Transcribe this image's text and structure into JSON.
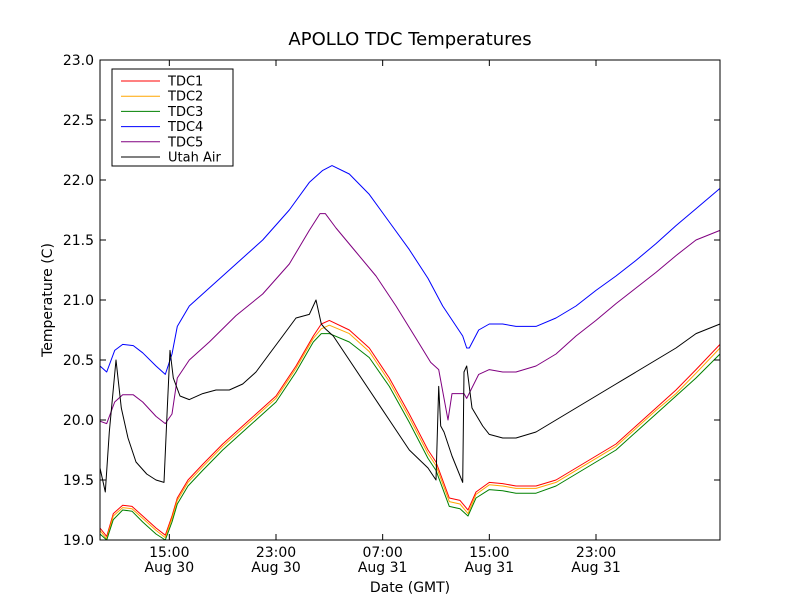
{
  "chart_data": {
    "type": "line",
    "title": "APOLLO TDC Temperatures",
    "xlabel": "Date (GMT)",
    "ylabel": "Temperature (C)",
    "ylim": [
      19.0,
      23.0
    ],
    "xlim_hours": [
      9.8,
      56.3
    ],
    "y_ticks": [
      {
        "value": 19.0,
        "label": "19.0"
      },
      {
        "value": 19.5,
        "label": "19.5"
      },
      {
        "value": 20.0,
        "label": "20.0"
      },
      {
        "value": 20.5,
        "label": "20.5"
      },
      {
        "value": 21.0,
        "label": "21.0"
      },
      {
        "value": 21.5,
        "label": "21.5"
      },
      {
        "value": 22.0,
        "label": "22.0"
      },
      {
        "value": 22.5,
        "label": "22.5"
      },
      {
        "value": 23.0,
        "label": "23.0"
      }
    ],
    "x_ticks": [
      {
        "hour": 15,
        "time": "15:00",
        "date": "Aug 30"
      },
      {
        "hour": 23,
        "time": "23:00",
        "date": "Aug 30"
      },
      {
        "hour": 31,
        "time": "07:00",
        "date": "Aug 31"
      },
      {
        "hour": 39,
        "time": "15:00",
        "date": "Aug 31"
      },
      {
        "hour": 47,
        "time": "23:00",
        "date": "Aug 31"
      }
    ],
    "legend": {
      "placement": "top-left"
    },
    "series": [
      {
        "name": "TDC1",
        "color": "#ff0000",
        "x": [
          9.8,
          10.3,
          10.8,
          11.5,
          12.2,
          13.0,
          14.0,
          14.7,
          15.2,
          15.6,
          16.4,
          17.5,
          19.0,
          21.0,
          23.0,
          24.5,
          25.8,
          26.4,
          27.0,
          28.5,
          30.0,
          31.5,
          33.0,
          34.4,
          35.0,
          36.0,
          36.8,
          37.4,
          38.0,
          39.0,
          40.0,
          41.0,
          42.5,
          44.0,
          45.5,
          47.0,
          48.5,
          50.0,
          51.5,
          53.0,
          54.5,
          56.3
        ],
        "values": [
          19.1,
          19.03,
          19.22,
          19.29,
          19.28,
          19.2,
          19.1,
          19.04,
          19.2,
          19.35,
          19.5,
          19.63,
          19.8,
          20.0,
          20.2,
          20.45,
          20.7,
          20.8,
          20.83,
          20.75,
          20.6,
          20.35,
          20.05,
          19.75,
          19.65,
          19.35,
          19.33,
          19.25,
          19.4,
          19.48,
          19.47,
          19.45,
          19.45,
          19.5,
          19.6,
          19.7,
          19.8,
          19.95,
          20.1,
          20.25,
          20.42,
          20.63
        ]
      },
      {
        "name": "TDC2",
        "color": "#ffa500",
        "x": [
          9.8,
          10.3,
          10.8,
          11.5,
          12.2,
          13.0,
          14.0,
          14.7,
          15.2,
          15.6,
          16.4,
          17.5,
          19.0,
          21.0,
          23.0,
          24.5,
          25.8,
          26.4,
          27.0,
          28.5,
          30.0,
          31.5,
          33.0,
          34.4,
          35.0,
          36.0,
          36.8,
          37.4,
          38.0,
          39.0,
          40.0,
          41.0,
          42.5,
          44.0,
          45.5,
          47.0,
          48.5,
          50.0,
          51.5,
          53.0,
          54.5,
          56.3
        ],
        "values": [
          19.08,
          19.01,
          19.2,
          19.27,
          19.26,
          19.18,
          19.08,
          19.02,
          19.18,
          19.33,
          19.48,
          19.61,
          19.78,
          19.98,
          20.18,
          20.43,
          20.68,
          20.76,
          20.79,
          20.72,
          20.57,
          20.32,
          20.02,
          19.72,
          19.62,
          19.32,
          19.3,
          19.22,
          19.38,
          19.46,
          19.45,
          19.43,
          19.43,
          19.48,
          19.58,
          19.68,
          19.78,
          19.93,
          20.08,
          20.22,
          20.39,
          20.6
        ]
      },
      {
        "name": "TDC3",
        "color": "#008000",
        "x": [
          9.8,
          10.3,
          10.8,
          11.5,
          12.2,
          13.0,
          14.0,
          14.7,
          15.2,
          15.6,
          16.4,
          17.5,
          19.0,
          21.0,
          23.0,
          24.5,
          25.8,
          26.4,
          27.0,
          28.5,
          30.0,
          31.5,
          33.0,
          34.4,
          35.0,
          36.0,
          36.8,
          37.4,
          38.0,
          39.0,
          40.0,
          41.0,
          42.5,
          44.0,
          45.5,
          47.0,
          48.5,
          50.0,
          51.5,
          53.0,
          54.5,
          56.3
        ],
        "values": [
          19.05,
          19.0,
          19.17,
          19.25,
          19.24,
          19.15,
          19.05,
          19.0,
          19.15,
          19.3,
          19.45,
          19.58,
          19.75,
          19.95,
          20.15,
          20.4,
          20.65,
          20.72,
          20.72,
          20.65,
          20.52,
          20.28,
          19.98,
          19.68,
          19.58,
          19.28,
          19.26,
          19.2,
          19.35,
          19.42,
          19.41,
          19.39,
          19.39,
          19.45,
          19.55,
          19.65,
          19.75,
          19.9,
          20.05,
          20.2,
          20.35,
          20.55
        ]
      },
      {
        "name": "TDC4",
        "color": "#0000ff",
        "x": [
          9.8,
          10.3,
          10.9,
          11.5,
          12.3,
          13.0,
          14.0,
          14.7,
          15.2,
          15.6,
          16.5,
          18.0,
          20.0,
          22.0,
          24.0,
          25.5,
          26.5,
          27.2,
          28.5,
          30.0,
          31.5,
          33.0,
          34.4,
          35.5,
          37.0,
          37.3,
          37.5,
          38.2,
          39.0,
          40.0,
          41.0,
          42.5,
          44.0,
          45.5,
          47.0,
          48.5,
          50.0,
          51.5,
          53.0,
          54.5,
          56.3
        ],
        "values": [
          20.45,
          20.4,
          20.58,
          20.63,
          20.62,
          20.56,
          20.45,
          20.38,
          20.55,
          20.78,
          20.95,
          21.1,
          21.3,
          21.5,
          21.75,
          21.98,
          22.08,
          22.12,
          22.05,
          21.88,
          21.65,
          21.42,
          21.18,
          20.95,
          20.7,
          20.6,
          20.6,
          20.75,
          20.8,
          20.8,
          20.78,
          20.78,
          20.85,
          20.95,
          21.08,
          21.2,
          21.33,
          21.47,
          21.62,
          21.76,
          21.93
        ]
      },
      {
        "name": "TDC5",
        "color": "#800080",
        "x": [
          9.8,
          10.3,
          10.9,
          11.5,
          12.3,
          13.0,
          14.0,
          14.7,
          15.2,
          15.6,
          16.5,
          18.0,
          20.0,
          22.0,
          24.0,
          25.5,
          26.3,
          26.7,
          27.5,
          29.0,
          30.5,
          32.0,
          33.5,
          34.6,
          35.2,
          35.9,
          36.2,
          37.1,
          37.3,
          38.2,
          39.0,
          40.0,
          41.0,
          42.5,
          44.0,
          45.5,
          47.0,
          48.5,
          50.0,
          51.5,
          53.0,
          54.5,
          56.3
        ],
        "values": [
          19.99,
          19.97,
          20.15,
          20.21,
          20.21,
          20.15,
          20.03,
          19.97,
          20.05,
          20.35,
          20.5,
          20.65,
          20.87,
          21.05,
          21.3,
          21.58,
          21.72,
          21.72,
          21.6,
          21.4,
          21.2,
          20.95,
          20.68,
          20.48,
          20.42,
          20.0,
          20.22,
          20.22,
          20.18,
          20.38,
          20.42,
          20.4,
          20.4,
          20.45,
          20.55,
          20.7,
          20.83,
          20.97,
          21.1,
          21.23,
          21.37,
          21.5,
          21.58
        ]
      },
      {
        "name": "Utah Air",
        "color": "#000000",
        "x": [
          9.8,
          10.2,
          10.5,
          11.0,
          11.4,
          11.9,
          12.5,
          13.3,
          14.0,
          14.6,
          14.85,
          15.05,
          15.3,
          15.8,
          16.5,
          17.5,
          18.5,
          19.5,
          20.5,
          21.5,
          22.5,
          23.5,
          24.5,
          25.5,
          26.0,
          26.4,
          26.7,
          27.3,
          28.5,
          30.0,
          31.5,
          33.0,
          34.4,
          35.0,
          35.2,
          35.35,
          35.6,
          36.2,
          37.0,
          37.1,
          37.3,
          37.7,
          38.5,
          39.0,
          40.0,
          41.0,
          42.5,
          44.0,
          45.5,
          47.0,
          48.5,
          50.0,
          51.5,
          53.0,
          54.5,
          56.3
        ],
        "values": [
          19.6,
          19.4,
          19.9,
          20.5,
          20.1,
          19.85,
          19.65,
          19.55,
          19.5,
          19.48,
          20.1,
          20.58,
          20.35,
          20.2,
          20.17,
          20.22,
          20.25,
          20.25,
          20.3,
          20.4,
          20.55,
          20.7,
          20.85,
          20.88,
          21.0,
          20.8,
          20.76,
          20.7,
          20.5,
          20.25,
          20.0,
          19.75,
          19.6,
          19.5,
          20.28,
          19.95,
          19.9,
          19.7,
          19.48,
          20.4,
          20.45,
          20.1,
          19.95,
          19.88,
          19.85,
          19.85,
          19.9,
          20.0,
          20.1,
          20.2,
          20.3,
          20.4,
          20.5,
          20.6,
          20.72,
          20.8
        ]
      }
    ]
  }
}
